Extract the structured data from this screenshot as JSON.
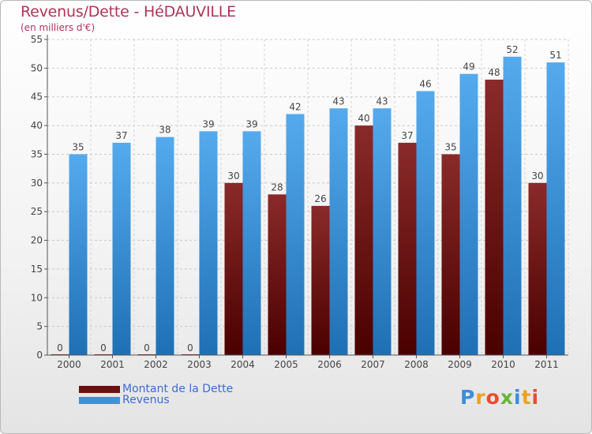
{
  "header": {
    "title": "Revenus/Dette - HéDAUVILLE",
    "subtitle": "(en milliers d'€)"
  },
  "chart_data": {
    "type": "bar",
    "title": "Revenus/Dette - HéDAUVILLE",
    "subtitle": "(en milliers d'€)",
    "xlabel": "",
    "ylabel": "",
    "ylim": [
      0,
      55
    ],
    "yticks": [
      0,
      5,
      10,
      15,
      20,
      25,
      30,
      35,
      40,
      45,
      50,
      55
    ],
    "grid": true,
    "legend_position": "bottom-left",
    "categories": [
      "2000",
      "2001",
      "2002",
      "2003",
      "2004",
      "2005",
      "2006",
      "2007",
      "2008",
      "2009",
      "2010",
      "2011"
    ],
    "series": [
      {
        "name": "Montant de la Dette",
        "color": "#7a1414",
        "values": [
          0,
          0,
          0,
          0,
          30,
          28,
          26,
          40,
          37,
          35,
          48,
          30
        ]
      },
      {
        "name": "Revenus",
        "color": "#3d93d8",
        "values": [
          35,
          37,
          38,
          39,
          39,
          42,
          43,
          43,
          46,
          49,
          52,
          51
        ]
      }
    ]
  },
  "legend": {
    "items": [
      {
        "label": "Montant de la Dette",
        "color": "#6b0f0f"
      },
      {
        "label": "Revenus",
        "color": "#3d93d8"
      }
    ]
  },
  "logo": {
    "letters": [
      "P",
      "r",
      "o",
      "x",
      "i",
      "t",
      "i"
    ],
    "colors": [
      "#3b8ed8",
      "#f0a020",
      "#e84d2e",
      "#6ab33c",
      "#3b8ed8",
      "#f0a020",
      "#e84d2e"
    ]
  }
}
